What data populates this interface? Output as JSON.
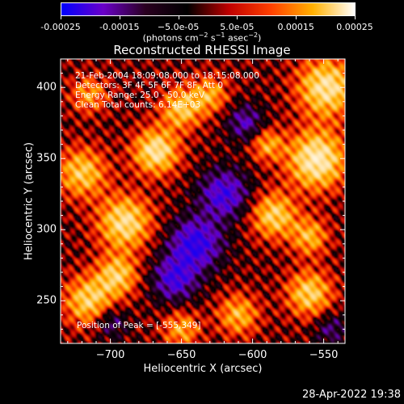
{
  "chart_data": {
    "type": "heatmap",
    "title": "Reconstructed RHESSI Image",
    "xlabel": "Heliocentric X (arcsec)",
    "ylabel": "Heliocentric Y (arcsec)",
    "xlim": [
      -735,
      -535
    ],
    "ylim": [
      220,
      420
    ],
    "xticks": [
      -700,
      -650,
      -600,
      -550
    ],
    "xtick_labels": [
      "−700",
      "−650",
      "−600",
      "−550"
    ],
    "yticks": [
      250,
      300,
      350,
      400
    ],
    "ytick_labels": [
      "250",
      "300",
      "350",
      "400"
    ],
    "colorbar": {
      "range": [
        -0.00025,
        0.00025
      ],
      "ticks": [
        -0.00025,
        -0.00015,
        -5e-05,
        5e-05,
        0.00015,
        0.00025
      ],
      "tick_labels": [
        "-0.00025",
        "-0.00015",
        "−5.0e-05",
        "5.0e-05",
        "0.00015",
        "0.00025"
      ],
      "unit_prefix": "(photons cm",
      "unit_exp1": "−2",
      "unit_mid": " s",
      "unit_exp2": "−1",
      "unit_mid2": " asec",
      "unit_exp3": "−2",
      "unit_suffix": ")",
      "colors": [
        "#0000ff",
        "#6a00c8",
        "#2a0020",
        "#000000",
        "#c00000",
        "#ff4000",
        "#ffb000",
        "#ffffff"
      ]
    },
    "annotations": [
      "21-Feb-2004 18:09:08.000 to 18:15:08.000",
      "Detectors: 3F 4F 5F 6F 7F 8F, Att 0",
      "Energy Range: 25.0 - 50.0 keV",
      "Clean     Total counts: 6.14E+03"
    ],
    "peak_label": "Position of Peak = [-555,349]",
    "peak": [
      -555,
      349
    ],
    "blobs": [
      {
        "x": -555,
        "y": 349,
        "sigma": 14,
        "amp": 1.0
      },
      {
        "x": -548,
        "y": 400,
        "sigma": 14,
        "amp": 0.9
      },
      {
        "x": -585,
        "y": 310,
        "sigma": 11,
        "amp": 0.75
      },
      {
        "x": -668,
        "y": 355,
        "sigma": 11,
        "amp": 0.9
      },
      {
        "x": -690,
        "y": 305,
        "sigma": 13,
        "amp": 0.85
      },
      {
        "x": -720,
        "y": 340,
        "sigma": 12,
        "amp": 0.7
      },
      {
        "x": -650,
        "y": 385,
        "sigma": 10,
        "amp": 0.7
      },
      {
        "x": -630,
        "y": 395,
        "sigma": 9,
        "amp": 0.55
      },
      {
        "x": -715,
        "y": 250,
        "sigma": 12,
        "amp": 0.75
      },
      {
        "x": -695,
        "y": 268,
        "sigma": 10,
        "amp": 0.7
      },
      {
        "x": -560,
        "y": 255,
        "sigma": 11,
        "amp": 0.75
      },
      {
        "x": -610,
        "y": 240,
        "sigma": 10,
        "amp": 0.6
      },
      {
        "x": -560,
        "y": 295,
        "sigma": 9,
        "amp": 0.6
      },
      {
        "x": -590,
        "y": 360,
        "sigma": 8,
        "amp": 0.55
      },
      {
        "x": -650,
        "y": 230,
        "sigma": 9,
        "amp": 0.55
      },
      {
        "x": -715,
        "y": 395,
        "sigma": 9,
        "amp": 0.5
      },
      {
        "x": -640,
        "y": 290,
        "sigma": 13,
        "amp": -0.85
      },
      {
        "x": -620,
        "y": 325,
        "sigma": 12,
        "amp": -0.75
      },
      {
        "x": -655,
        "y": 265,
        "sigma": 11,
        "amp": -0.7
      },
      {
        "x": -605,
        "y": 375,
        "sigma": 9,
        "amp": -0.55
      },
      {
        "x": -700,
        "y": 235,
        "sigma": 8,
        "amp": -0.45
      },
      {
        "x": -545,
        "y": 230,
        "sigma": 8,
        "amp": -0.4
      }
    ]
  },
  "timestamp": "28-Apr-2022 19:38"
}
